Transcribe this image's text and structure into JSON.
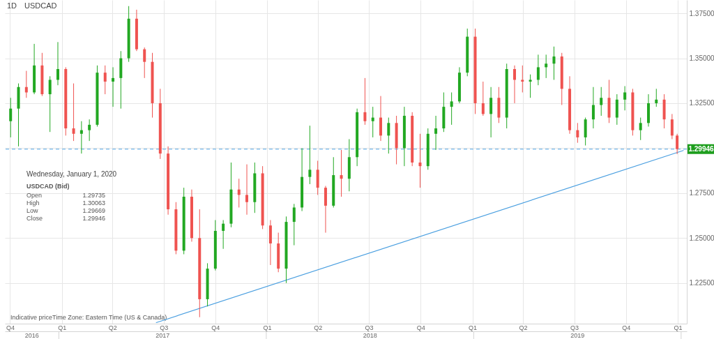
{
  "chart_data": {
    "type": "candlestick",
    "title": "USDCAD",
    "x": [
      "2016-10-02",
      "2016-10-16",
      "2016-10-30",
      "2016-11-13",
      "2016-11-27",
      "2016-12-11",
      "2016-12-25",
      "2017-01-08",
      "2017-01-22",
      "2017-02-05",
      "2017-02-19",
      "2017-03-05",
      "2017-03-19",
      "2017-04-02",
      "2017-04-16",
      "2017-04-30",
      "2017-05-14",
      "2017-05-28",
      "2017-06-11",
      "2017-06-25",
      "2017-07-09",
      "2017-07-23",
      "2017-08-06",
      "2017-08-20",
      "2017-09-03",
      "2017-09-17",
      "2017-10-01",
      "2017-10-15",
      "2017-10-29",
      "2017-11-12",
      "2017-11-26",
      "2017-12-10",
      "2017-12-24",
      "2018-01-07",
      "2018-01-21",
      "2018-02-04",
      "2018-02-18",
      "2018-03-04",
      "2018-03-18",
      "2018-04-01",
      "2018-04-15",
      "2018-04-29",
      "2018-05-13",
      "2018-05-27",
      "2018-06-10",
      "2018-06-24",
      "2018-07-08",
      "2018-07-22",
      "2018-08-05",
      "2018-08-19",
      "2018-09-02",
      "2018-09-16",
      "2018-09-30",
      "2018-10-14",
      "2018-10-28",
      "2018-11-11",
      "2018-11-25",
      "2018-12-09",
      "2018-12-23",
      "2019-01-06",
      "2019-01-20",
      "2019-02-03",
      "2019-02-17",
      "2019-03-03",
      "2019-03-17",
      "2019-03-31",
      "2019-04-14",
      "2019-04-28",
      "2019-05-12",
      "2019-05-26",
      "2019-06-09",
      "2019-06-23",
      "2019-07-07",
      "2019-07-21",
      "2019-08-04",
      "2019-08-18",
      "2019-09-01",
      "2019-09-15",
      "2019-09-29",
      "2019-10-13",
      "2019-10-27",
      "2019-11-10",
      "2019-11-24",
      "2019-12-08",
      "2019-12-22",
      "2019-12-31"
    ],
    "ohlc": [
      [
        1.315,
        1.328,
        1.306,
        1.322
      ],
      [
        1.322,
        1.336,
        1.301,
        1.334
      ],
      [
        1.334,
        1.343,
        1.328,
        1.331
      ],
      [
        1.331,
        1.358,
        1.33,
        1.346
      ],
      [
        1.346,
        1.353,
        1.329,
        1.33
      ],
      [
        1.33,
        1.34,
        1.309,
        1.338
      ],
      [
        1.338,
        1.359,
        1.335,
        1.344
      ],
      [
        1.344,
        1.345,
        1.307,
        1.311
      ],
      [
        1.311,
        1.336,
        1.304,
        1.308
      ],
      [
        1.308,
        1.315,
        1.297,
        1.31
      ],
      [
        1.31,
        1.316,
        1.304,
        1.313
      ],
      [
        1.313,
        1.346,
        1.312,
        1.342
      ],
      [
        1.342,
        1.346,
        1.33,
        1.337
      ],
      [
        1.337,
        1.345,
        1.323,
        1.339
      ],
      [
        1.339,
        1.354,
        1.322,
        1.35
      ],
      [
        1.35,
        1.379,
        1.348,
        1.372
      ],
      [
        1.372,
        1.377,
        1.354,
        1.355
      ],
      [
        1.355,
        1.356,
        1.339,
        1.348
      ],
      [
        1.348,
        1.353,
        1.317,
        1.325
      ],
      [
        1.325,
        1.333,
        1.294,
        1.297
      ],
      [
        1.297,
        1.301,
        1.263,
        1.266
      ],
      [
        1.266,
        1.27,
        1.241,
        1.243
      ],
      [
        1.243,
        1.278,
        1.241,
        1.273
      ],
      [
        1.273,
        1.277,
        1.248,
        1.25
      ],
      [
        1.25,
        1.266,
        1.206,
        1.216
      ],
      [
        1.216,
        1.236,
        1.212,
        1.233
      ],
      [
        1.233,
        1.26,
        1.232,
        1.254
      ],
      [
        1.254,
        1.26,
        1.244,
        1.258
      ],
      [
        1.258,
        1.292,
        1.256,
        1.277
      ],
      [
        1.277,
        1.283,
        1.267,
        1.274
      ],
      [
        1.274,
        1.291,
        1.263,
        1.27
      ],
      [
        1.27,
        1.292,
        1.264,
        1.286
      ],
      [
        1.286,
        1.29,
        1.255,
        1.257
      ],
      [
        1.257,
        1.26,
        1.235,
        1.247
      ],
      [
        1.247,
        1.253,
        1.231,
        1.233
      ],
      [
        1.233,
        1.262,
        1.225,
        1.259
      ],
      [
        1.259,
        1.269,
        1.246,
        1.267
      ],
      [
        1.267,
        1.3,
        1.265,
        1.284
      ],
      [
        1.284,
        1.3125,
        1.28,
        1.288
      ],
      [
        1.288,
        1.293,
        1.274,
        1.278
      ],
      [
        1.278,
        1.279,
        1.253,
        1.268
      ],
      [
        1.268,
        1.295,
        1.267,
        1.285
      ],
      [
        1.285,
        1.299,
        1.273,
        1.283
      ],
      [
        1.283,
        1.305,
        1.276,
        1.295
      ],
      [
        1.295,
        1.322,
        1.29,
        1.32
      ],
      [
        1.32,
        1.339,
        1.313,
        1.315
      ],
      [
        1.315,
        1.323,
        1.306,
        1.317
      ],
      [
        1.317,
        1.329,
        1.304,
        1.307
      ],
      [
        1.307,
        1.317,
        1.297,
        1.314
      ],
      [
        1.314,
        1.318,
        1.291,
        1.3
      ],
      [
        1.3,
        1.323,
        1.29,
        1.318
      ],
      [
        1.318,
        1.32,
        1.29,
        1.292
      ],
      [
        1.292,
        1.308,
        1.278,
        1.29
      ],
      [
        1.29,
        1.311,
        1.288,
        1.308
      ],
      [
        1.308,
        1.318,
        1.299,
        1.311
      ],
      [
        1.311,
        1.331,
        1.309,
        1.323
      ],
      [
        1.323,
        1.331,
        1.313,
        1.326
      ],
      [
        1.326,
        1.345,
        1.325,
        1.342
      ],
      [
        1.342,
        1.3665,
        1.34,
        1.362
      ],
      [
        1.362,
        1.3665,
        1.319,
        1.325
      ],
      [
        1.325,
        1.337,
        1.318,
        1.319
      ],
      [
        1.319,
        1.334,
        1.306,
        1.328
      ],
      [
        1.328,
        1.334,
        1.314,
        1.317
      ],
      [
        1.317,
        1.347,
        1.311,
        1.344
      ],
      [
        1.344,
        1.346,
        1.325,
        1.338
      ],
      [
        1.338,
        1.346,
        1.331,
        1.337
      ],
      [
        1.337,
        1.341,
        1.328,
        1.338
      ],
      [
        1.338,
        1.352,
        1.335,
        1.345
      ],
      [
        1.345,
        1.352,
        1.339,
        1.347
      ],
      [
        1.347,
        1.3565,
        1.338,
        1.351
      ],
      [
        1.351,
        1.353,
        1.324,
        1.333
      ],
      [
        1.333,
        1.34,
        1.308,
        1.31
      ],
      [
        1.31,
        1.314,
        1.303,
        1.306
      ],
      [
        1.306,
        1.317,
        1.3015,
        1.316
      ],
      [
        1.316,
        1.334,
        1.311,
        1.324
      ],
      [
        1.324,
        1.334,
        1.318,
        1.328
      ],
      [
        1.328,
        1.338,
        1.314,
        1.317
      ],
      [
        1.317,
        1.33,
        1.313,
        1.327
      ],
      [
        1.327,
        1.3345,
        1.321,
        1.331
      ],
      [
        1.331,
        1.333,
        1.307,
        1.31
      ],
      [
        1.31,
        1.317,
        1.3045,
        1.314
      ],
      [
        1.314,
        1.33,
        1.312,
        1.325
      ],
      [
        1.325,
        1.333,
        1.323,
        1.327
      ],
      [
        1.327,
        1.33,
        1.311,
        1.316
      ],
      [
        1.316,
        1.319,
        1.305,
        1.307
      ],
      [
        1.307,
        1.308,
        1.2967,
        1.2995
      ]
    ],
    "colors": [
      "#22a822",
      "#22a822",
      "#ef5350",
      "#22a822",
      "#ef5350",
      "#22a822",
      "#22a822",
      "#ef5350",
      "#ef5350",
      "#22a822",
      "#22a822",
      "#22a822",
      "#ef5350",
      "#22a822",
      "#22a822",
      "#22a822",
      "#ef5350",
      "#ef5350",
      "#ef5350",
      "#ef5350",
      "#ef5350",
      "#ef5350",
      "#22a822",
      "#ef5350",
      "#ef5350",
      "#22a822",
      "#22a822",
      "#22a822",
      "#22a822",
      "#ef5350",
      "#ef5350",
      "#22a822",
      "#ef5350",
      "#ef5350",
      "#ef5350",
      "#22a822",
      "#22a822",
      "#22a822",
      "#22a822",
      "#ef5350",
      "#ef5350",
      "#22a822",
      "#ef5350",
      "#22a822",
      "#22a822",
      "#ef5350",
      "#22a822",
      "#ef5350",
      "#22a822",
      "#ef5350",
      "#22a822",
      "#ef5350",
      "#ef5350",
      "#22a822",
      "#22a822",
      "#22a822",
      "#22a822",
      "#22a822",
      "#22a822",
      "#ef5350",
      "#ef5350",
      "#22a822",
      "#ef5350",
      "#22a822",
      "#ef5350",
      "#ef5350",
      "#22a822",
      "#22a822",
      "#22a822",
      "#22a822",
      "#ef5350",
      "#ef5350",
      "#ef5350",
      "#22a822",
      "#22a822",
      "#22a822",
      "#ef5350",
      "#22a822",
      "#22a822",
      "#ef5350",
      "#22a822",
      "#22a822",
      "#22a822",
      "#ef5350",
      "#ef5350",
      "#ef5350"
    ],
    "series": [
      {
        "type": "line",
        "color": "#4a9fe0",
        "x": [
          "2017-06-18",
          "2020-01-11"
        ],
        "values": [
          1.203,
          1.2987
        ]
      }
    ],
    "ref_lines": [
      {
        "axis": "y",
        "value": 1.29946,
        "label": "1.29946",
        "color": "#8cc4ee",
        "line_style": "dashed"
      }
    ],
    "xlim": [
      "2016-09-28",
      "2020-01-11"
    ],
    "xticks": [
      {
        "value": "2016-10-01",
        "label": "Q4"
      },
      {
        "value": "2017-01-01",
        "label": "Q1"
      },
      {
        "value": "2017-04-01",
        "label": "Q2"
      },
      {
        "value": "2017-07-01",
        "label": "Q3"
      },
      {
        "value": "2017-10-01",
        "label": "Q4"
      },
      {
        "value": "2018-01-01",
        "label": "Q1"
      },
      {
        "value": "2018-04-01",
        "label": "Q2"
      },
      {
        "value": "2018-07-01",
        "label": "Q3"
      },
      {
        "value": "2018-10-01",
        "label": "Q4"
      },
      {
        "value": "2019-01-01",
        "label": "Q1"
      },
      {
        "value": "2019-04-01",
        "label": "Q2"
      },
      {
        "value": "2019-07-01",
        "label": "Q3"
      },
      {
        "value": "2019-10-01",
        "label": "Q4"
      },
      {
        "value": "2020-01-01",
        "label": "Q1"
      }
    ],
    "x2lim": [
      "2016-09-28",
      "2020-01-11"
    ],
    "x2ticks": [
      {
        "value": "2016-11-14",
        "label": "2016"
      },
      {
        "value": "2017-01-01",
        "label": null
      },
      {
        "value": "2017-07-02",
        "label": "2017"
      },
      {
        "value": "2018-01-01",
        "label": null
      },
      {
        "value": "2018-07-02",
        "label": "2018"
      },
      {
        "value": "2019-01-01",
        "label": null
      },
      {
        "value": "2019-07-02",
        "label": "2019"
      },
      {
        "value": "2020-01-01",
        "label": null
      }
    ],
    "ylim": [
      1.2024,
      1.3824
    ],
    "yticks": [
      {
        "value": 1.225,
        "label": "1.22500"
      },
      {
        "value": 1.25,
        "label": "1.25000"
      },
      {
        "value": 1.275,
        "label": "1.27500"
      },
      {
        "value": 1.3,
        "label": null
      },
      {
        "value": 1.325,
        "label": "1.32500"
      },
      {
        "value": 1.35,
        "label": "1.35000"
      },
      {
        "value": 1.375,
        "label": "1.37500"
      }
    ],
    "grid": true,
    "annotations": [
      "1D",
      "Wednesday, January 1, 2020",
      "USDCAD (Bid)",
      "Open",
      "1.29735",
      "High",
      "1.30063",
      "Low",
      "1.29669",
      "Close",
      "1.29946",
      "Indicative price",
      "Time Zone: Eastern Time (US & Canada)"
    ]
  }
}
